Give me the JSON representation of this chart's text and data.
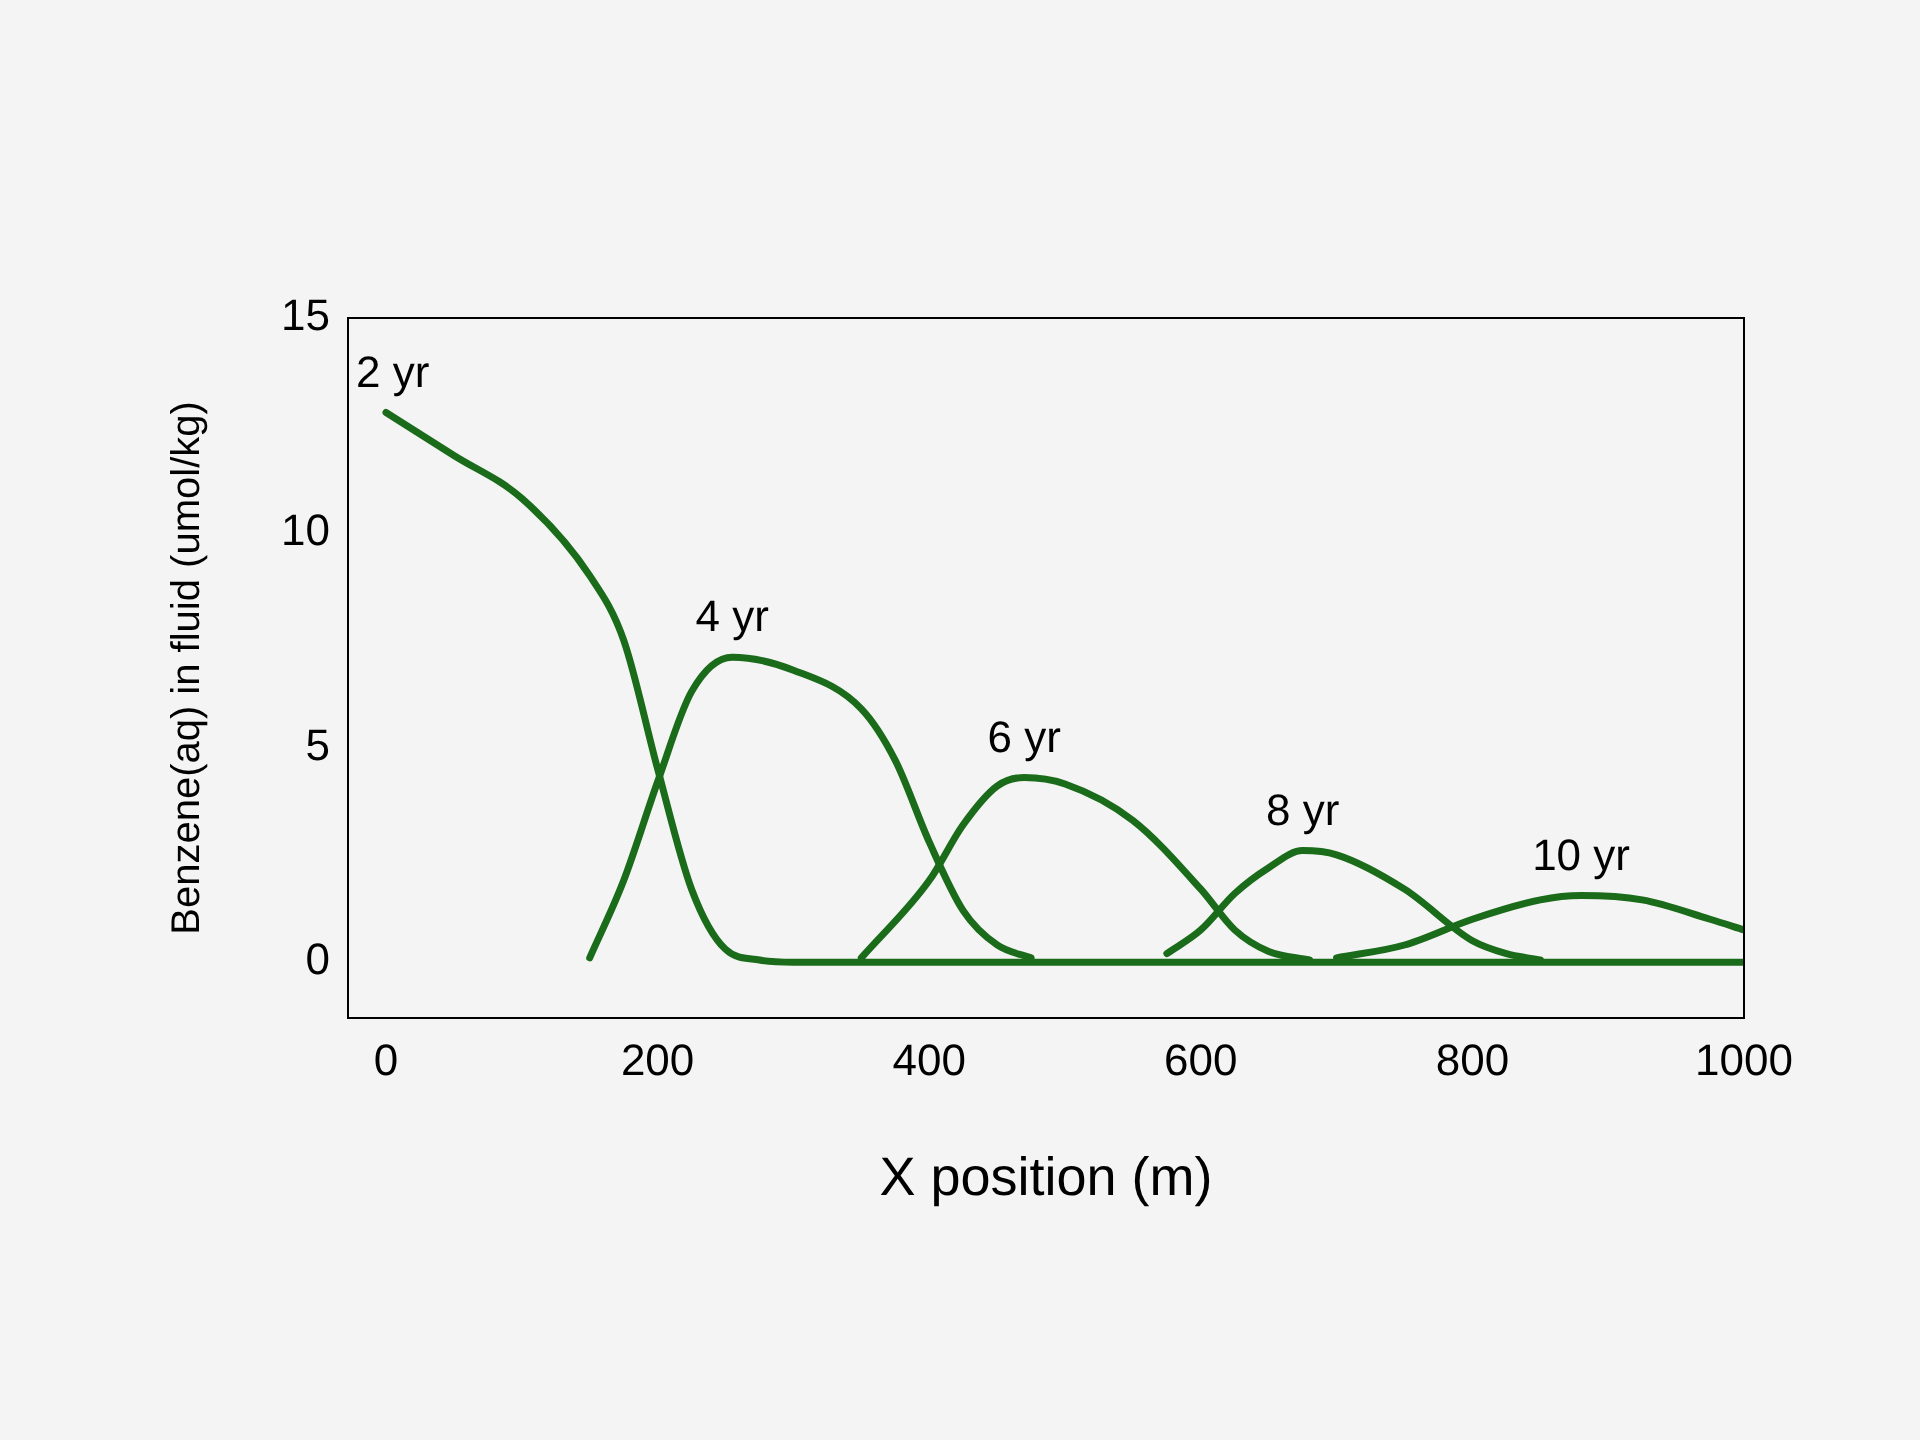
{
  "chart_data": {
    "type": "line",
    "xlabel": "X position (m)",
    "ylabel": "Benzene(aq) in fluid (umol/kg)",
    "xlim": [
      -28,
      1000
    ],
    "ylim": [
      -1.3,
      15
    ],
    "xticks": [
      0,
      200,
      400,
      600,
      800,
      1000
    ],
    "yticks": [
      0,
      5,
      10,
      15
    ],
    "grid": false,
    "legend": false,
    "marker": "none",
    "line_style": "solid",
    "series": [
      {
        "name": "2 yr",
        "color": "#1a6b1a",
        "x": [
          0,
          50,
          100,
          150,
          175,
          200,
          225,
          250,
          275,
          300,
          1000
        ],
        "values": [
          12.8,
          11.8,
          10.8,
          9.0,
          7.5,
          4.5,
          1.7,
          0.3,
          0.05,
          0,
          0
        ]
      },
      {
        "name": "4 yr",
        "color": "#1a6b1a",
        "x": [
          150,
          175,
          200,
          225,
          255,
          300,
          350,
          375,
          400,
          425,
          450,
          475
        ],
        "values": [
          0.1,
          1.9,
          4.2,
          6.3,
          7.1,
          6.8,
          5.9,
          4.7,
          2.8,
          1.2,
          0.4,
          0.1
        ]
      },
      {
        "name": "6 yr",
        "color": "#1a6b1a",
        "x": [
          350,
          400,
          425,
          450,
          470,
          500,
          550,
          600,
          625,
          650,
          680
        ],
        "values": [
          0.1,
          1.9,
          3.2,
          4.1,
          4.3,
          4.15,
          3.3,
          1.7,
          0.75,
          0.25,
          0.05
        ]
      },
      {
        "name": "8 yr",
        "color": "#1a6b1a",
        "x": [
          575,
          600,
          625,
          650,
          675,
          700,
          750,
          800,
          825,
          850
        ],
        "values": [
          0.2,
          0.75,
          1.6,
          2.2,
          2.6,
          2.5,
          1.7,
          0.5,
          0.2,
          0.05
        ]
      },
      {
        "name": "10 yr",
        "color": "#1a6b1a",
        "x": [
          700,
          750,
          800,
          850,
          880,
          925,
          975,
          1000
        ],
        "values": [
          0.1,
          0.4,
          1.0,
          1.45,
          1.55,
          1.45,
          1.0,
          0.75
        ]
      }
    ]
  }
}
